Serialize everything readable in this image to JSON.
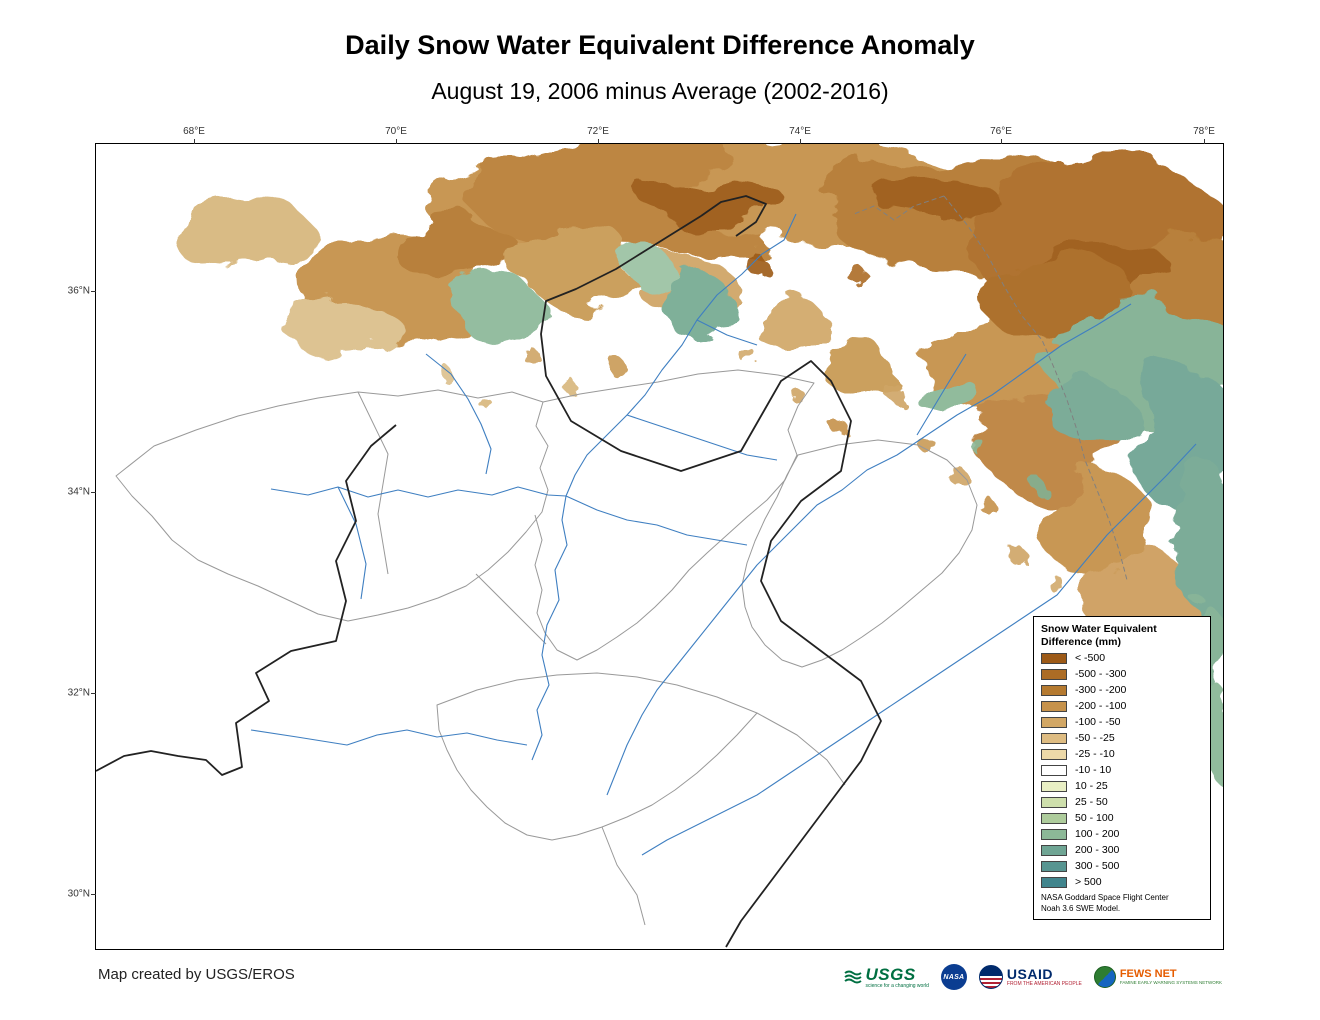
{
  "title": "Daily Snow Water Equivalent Difference Anomaly",
  "subtitle": "August 19, 2006 minus Average (2002-2016)",
  "map": {
    "lon_ticks": [
      "68°E",
      "70°E",
      "72°E",
      "74°E",
      "76°E",
      "78°E"
    ],
    "lat_ticks": [
      "36°N",
      "34°N",
      "32°N",
      "30°N"
    ],
    "colors": {
      "river": "#3F7FC1",
      "basin_boundary": "#999999",
      "major_basin_boundary": "#222222"
    }
  },
  "legend": {
    "title_line1": "Snow Water Equivalent",
    "title_line2": "Difference (mm)",
    "entries": [
      {
        "label": "< -500",
        "color": "#9D5A17"
      },
      {
        "label": "-500 - -300",
        "color": "#AC6C25"
      },
      {
        "label": "-300 - -200",
        "color": "#B57A30"
      },
      {
        "label": "-200 - -100",
        "color": "#C6924B"
      },
      {
        "label": "-100 - -50",
        "color": "#D2A765"
      },
      {
        "label": "-50 - -25",
        "color": "#DEBC82"
      },
      {
        "label": "-25 - -10",
        "color": "#EDD9A8"
      },
      {
        "label": "-10 - 10",
        "color": "#FFFFFF"
      },
      {
        "label": "10 - 25",
        "color": "#E9EFC4"
      },
      {
        "label": "25 - 50",
        "color": "#CEDFAC"
      },
      {
        "label": "50 - 100",
        "color": "#AECC9C"
      },
      {
        "label": "100 - 200",
        "color": "#8CB897"
      },
      {
        "label": "200 - 300",
        "color": "#6FA594"
      },
      {
        "label": "300 - 500",
        "color": "#579591"
      },
      {
        "label": "> 500",
        "color": "#41858D"
      }
    ],
    "note_line1": "NASA Goddard Space Flight Center",
    "note_line2": "Noah 3.6  SWE Model."
  },
  "footer": {
    "credit": "Map created by USGS/EROS"
  },
  "logos": [
    {
      "name": "USGS",
      "label": "USGS",
      "tagline": "science for a changing world"
    },
    {
      "name": "NASA",
      "label": "NASA"
    },
    {
      "name": "USAID",
      "label": "USAID",
      "tagline": "FROM THE AMERICAN PEOPLE"
    },
    {
      "name": "FEWS NET",
      "label": "FEWS NET",
      "tagline": "FAMINE EARLY WARNING SYSTEMS NETWORK"
    }
  ]
}
